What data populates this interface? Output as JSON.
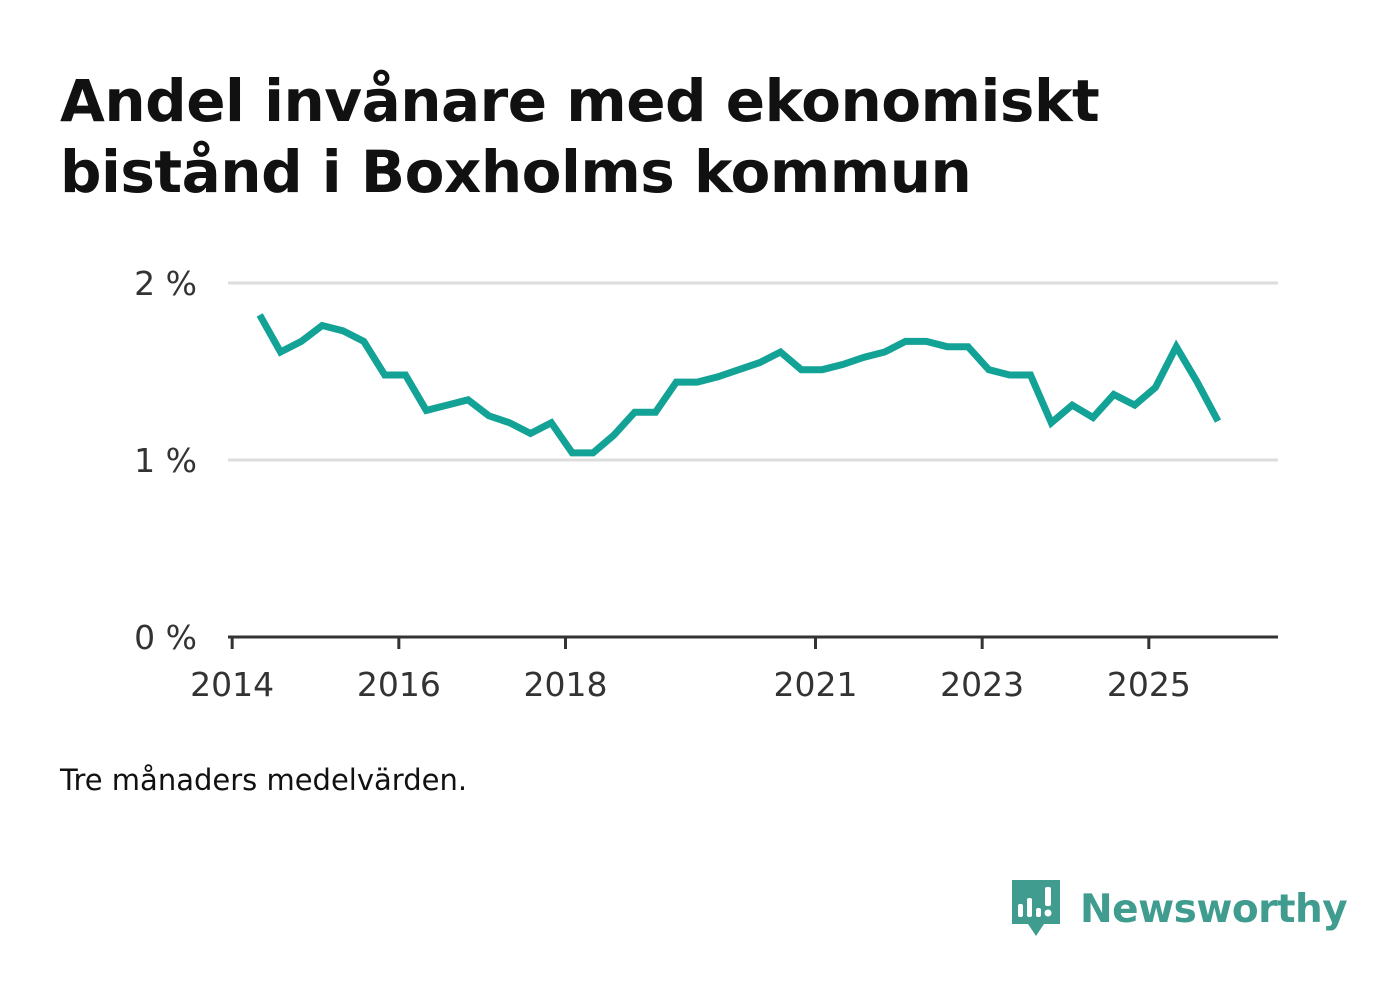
{
  "title": {
    "line1": "Andel invånare med ekonomiskt",
    "line2": "bistånd i Boxholms kommun"
  },
  "caption": "Tre månaders medelvärden.",
  "brand": {
    "name": "Newsworthy",
    "logo_icon": "newsworthy-logo-icon",
    "color": "#3f9c8e"
  },
  "colors": {
    "line": "#13a296",
    "grid": "#dddddd",
    "axis": "#333333",
    "text": "#111111",
    "tick_text": "#333333"
  },
  "chart_data": {
    "type": "line",
    "title": "Andel invånare med ekonomiskt bistånd i Boxholms kommun",
    "xlabel": "",
    "ylabel": "",
    "ylim": [
      0,
      2
    ],
    "xlim": [
      2013.95,
      2026.55
    ],
    "yticks": [
      {
        "value": 0,
        "label": "0 %"
      },
      {
        "value": 1,
        "label": "1 %"
      },
      {
        "value": 2,
        "label": "2 %"
      }
    ],
    "xticks": [
      {
        "value": 2014.0,
        "label": "2014"
      },
      {
        "value": 2016.0,
        "label": "2016"
      },
      {
        "value": 2018.0,
        "label": "2018"
      },
      {
        "value": 2021.0,
        "label": "2021"
      },
      {
        "value": 2023.0,
        "label": "2023"
      },
      {
        "value": 2025.0,
        "label": "2025"
      }
    ],
    "grid": true,
    "series": [
      {
        "name": "Andel invånare med ekonomiskt bistånd",
        "x": [
          2014.33,
          2014.58,
          2014.83,
          2015.08,
          2015.33,
          2015.58,
          2015.83,
          2016.08,
          2016.33,
          2016.58,
          2016.83,
          2017.08,
          2017.33,
          2017.58,
          2017.83,
          2018.08,
          2018.33,
          2018.58,
          2018.83,
          2019.08,
          2019.33,
          2019.58,
          2019.83,
          2020.08,
          2020.33,
          2020.58,
          2020.83,
          2021.08,
          2021.33,
          2021.58,
          2021.83,
          2022.08,
          2022.33,
          2022.58,
          2022.83,
          2023.08,
          2023.33,
          2023.58,
          2023.83,
          2024.08,
          2024.33,
          2024.58,
          2024.83,
          2025.08,
          2025.33,
          2025.58,
          2025.83
        ],
        "values": [
          1.82,
          1.61,
          1.67,
          1.76,
          1.73,
          1.67,
          1.48,
          1.48,
          1.28,
          1.31,
          1.34,
          1.25,
          1.21,
          1.15,
          1.21,
          1.04,
          1.04,
          1.14,
          1.27,
          1.27,
          1.44,
          1.44,
          1.47,
          1.51,
          1.55,
          1.61,
          1.51,
          1.51,
          1.54,
          1.58,
          1.61,
          1.67,
          1.67,
          1.64,
          1.64,
          1.51,
          1.48,
          1.48,
          1.21,
          1.31,
          1.24,
          1.37,
          1.31,
          1.41,
          1.64,
          1.44,
          1.22
        ]
      }
    ]
  }
}
